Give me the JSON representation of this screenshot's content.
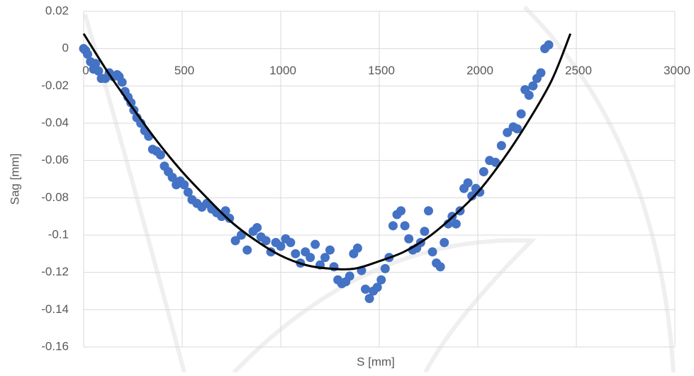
{
  "chart_data": {
    "type": "scatter",
    "x_label": "S [mm]",
    "y_label": "Sag [mm]",
    "xlim": [
      0,
      3000
    ],
    "xticks": [
      0,
      500,
      1000,
      1500,
      2000,
      2500,
      3000
    ],
    "ylim": [
      -0.16,
      0.02
    ],
    "yticks": [
      0.02,
      0,
      -0.02,
      -0.04,
      -0.06,
      -0.08,
      -0.1,
      -0.12,
      -0.14,
      -0.16
    ],
    "grid": true,
    "series": [
      {
        "type": "scatter",
        "color": "#4472c4",
        "x": [
          0,
          10,
          20,
          35,
          50,
          60,
          75,
          90,
          110,
          130,
          150,
          170,
          180,
          195,
          210,
          225,
          240,
          255,
          270,
          290,
          310,
          330,
          350,
          370,
          390,
          410,
          430,
          450,
          470,
          490,
          510,
          530,
          550,
          575,
          600,
          625,
          650,
          675,
          700,
          720,
          740,
          770,
          800,
          830,
          860,
          880,
          900,
          925,
          950,
          975,
          1000,
          1025,
          1050,
          1075,
          1100,
          1125,
          1150,
          1175,
          1200,
          1225,
          1250,
          1270,
          1290,
          1310,
          1330,
          1350,
          1370,
          1390,
          1410,
          1430,
          1450,
          1470,
          1490,
          1510,
          1530,
          1550,
          1570,
          1590,
          1610,
          1630,
          1650,
          1670,
          1690,
          1710,
          1730,
          1750,
          1770,
          1790,
          1810,
          1830,
          1850,
          1870,
          1890,
          1910,
          1930,
          1950,
          1970,
          1990,
          2010,
          2030,
          2060,
          2090,
          2120,
          2150,
          2180,
          2200,
          2220,
          2240,
          2260,
          2280,
          2300,
          2320,
          2340,
          2360
        ],
        "values": [
          0,
          -0.001,
          -0.003,
          -0.007,
          -0.011,
          -0.008,
          -0.012,
          -0.016,
          -0.016,
          -0.013,
          -0.015,
          -0.014,
          -0.015,
          -0.018,
          -0.023,
          -0.026,
          -0.029,
          -0.033,
          -0.037,
          -0.04,
          -0.044,
          -0.047,
          -0.054,
          -0.055,
          -0.057,
          -0.063,
          -0.066,
          -0.069,
          -0.073,
          -0.071,
          -0.073,
          -0.077,
          -0.081,
          -0.083,
          -0.085,
          -0.083,
          -0.086,
          -0.088,
          -0.09,
          -0.087,
          -0.091,
          -0.103,
          -0.1,
          -0.108,
          -0.098,
          -0.096,
          -0.101,
          -0.103,
          -0.109,
          -0.104,
          -0.106,
          -0.102,
          -0.104,
          -0.11,
          -0.115,
          -0.109,
          -0.112,
          -0.105,
          -0.116,
          -0.112,
          -0.108,
          -0.117,
          -0.124,
          -0.126,
          -0.125,
          -0.122,
          -0.11,
          -0.107,
          -0.119,
          -0.129,
          -0.134,
          -0.13,
          -0.128,
          -0.124,
          -0.118,
          -0.112,
          -0.095,
          -0.089,
          -0.087,
          -0.095,
          -0.102,
          -0.108,
          -0.107,
          -0.104,
          -0.098,
          -0.087,
          -0.109,
          -0.115,
          -0.117,
          -0.104,
          -0.094,
          -0.09,
          -0.094,
          -0.087,
          -0.075,
          -0.072,
          -0.079,
          -0.075,
          -0.077,
          -0.066,
          -0.06,
          -0.061,
          -0.052,
          -0.045,
          -0.042,
          -0.043,
          -0.035,
          -0.022,
          -0.025,
          -0.02,
          -0.016,
          -0.013,
          0.0,
          0.002
        ]
      },
      {
        "type": "line",
        "color": "#000000",
        "x": [
          0,
          125,
          250,
          375,
          500,
          625,
          750,
          875,
          1000,
          1125,
          1250,
          1375,
          1500,
          1625,
          1750,
          1875,
          2000,
          2125,
          2250,
          2375,
          2470
        ],
        "values": [
          0.008,
          -0.013,
          -0.032,
          -0.05,
          -0.066,
          -0.08,
          -0.093,
          -0.103,
          -0.111,
          -0.116,
          -0.118,
          -0.118,
          -0.114,
          -0.109,
          -0.101,
          -0.09,
          -0.077,
          -0.06,
          -0.04,
          -0.017,
          0.008
        ]
      }
    ]
  }
}
